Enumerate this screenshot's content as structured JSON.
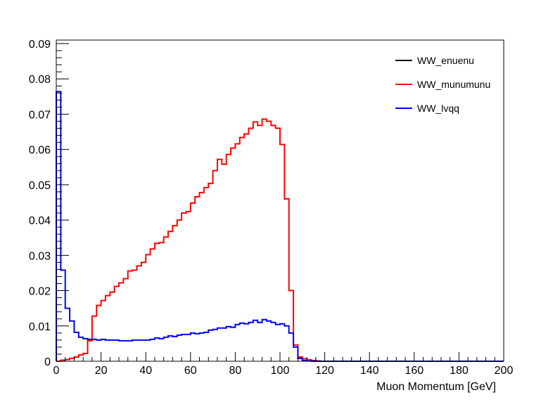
{
  "chart_data": {
    "type": "step-histogram",
    "title": "",
    "xlabel": "Muon Momentum [GeV]",
    "ylabel": "",
    "xlim": [
      0,
      200
    ],
    "ylim": [
      0,
      0.091
    ],
    "bin_width": 2,
    "x_ticks": [
      0,
      20,
      40,
      60,
      80,
      100,
      120,
      140,
      160,
      180,
      200
    ],
    "y_ticks": [
      0,
      0.01,
      0.02,
      0.03,
      0.04,
      0.05,
      0.06,
      0.07,
      0.08,
      0.09
    ],
    "x_tick_labels": [
      "0",
      "20",
      "40",
      "60",
      "80",
      "100",
      "120",
      "140",
      "160",
      "180",
      "200"
    ],
    "y_tick_labels": [
      "0",
      "0.01",
      "0.02",
      "0.03",
      "0.04",
      "0.05",
      "0.06",
      "0.07",
      "0.08",
      "0.09"
    ],
    "grid": false,
    "legend_position": "top-right",
    "series": [
      {
        "name": "WW_enuenu",
        "color": "#000000",
        "values": []
      },
      {
        "name": "WW_munumunu",
        "color": "#ff0000",
        "values": [
          0,
          0.0003,
          0.0005,
          0.0008,
          0.0012,
          0.0018,
          0.0022,
          0.0058,
          0.0128,
          0.0158,
          0.0172,
          0.0186,
          0.0196,
          0.0212,
          0.0222,
          0.0234,
          0.0256,
          0.0258,
          0.027,
          0.028,
          0.0302,
          0.0318,
          0.0334,
          0.0336,
          0.0352,
          0.0368,
          0.0384,
          0.04,
          0.042,
          0.0424,
          0.0448,
          0.0466,
          0.0478,
          0.0492,
          0.0504,
          0.054,
          0.0572,
          0.0558,
          0.0586,
          0.0604,
          0.0616,
          0.0634,
          0.0644,
          0.066,
          0.0678,
          0.0668,
          0.0686,
          0.068,
          0.0668,
          0.066,
          0.0614,
          0.046,
          0.02,
          0.0046,
          0.0012,
          0.0007,
          0.0004,
          0.0002,
          0.0001,
          0,
          0,
          0,
          0,
          0,
          0,
          0,
          0,
          0,
          0,
          0,
          0,
          0,
          0,
          0,
          0,
          0,
          0,
          0,
          0,
          0,
          0,
          0,
          0,
          0,
          0,
          0,
          0,
          0,
          0,
          0,
          0,
          0,
          0,
          0,
          0,
          0,
          0,
          0,
          0,
          0
        ]
      },
      {
        "name": "WW_lvqq",
        "color": "#0000ff",
        "values": [
          0.0764,
          0.0258,
          0.015,
          0.0114,
          0.0082,
          0.0068,
          0.0064,
          0.0062,
          0.0062,
          0.006,
          0.0062,
          0.006,
          0.006,
          0.006,
          0.0058,
          0.0058,
          0.0058,
          0.006,
          0.006,
          0.006,
          0.006,
          0.0062,
          0.0066,
          0.0064,
          0.0068,
          0.0072,
          0.007,
          0.0074,
          0.0076,
          0.0076,
          0.008,
          0.0078,
          0.008,
          0.0082,
          0.0088,
          0.009,
          0.0094,
          0.0094,
          0.0098,
          0.0096,
          0.0104,
          0.0108,
          0.0106,
          0.011,
          0.0116,
          0.011,
          0.0118,
          0.0114,
          0.011,
          0.0104,
          0.0106,
          0.01,
          0.008,
          0.004,
          0.0008,
          0.0002,
          0.0001,
          0,
          0,
          0,
          0,
          0,
          0,
          0,
          0,
          0,
          0,
          0,
          0,
          0,
          0,
          0,
          0,
          0,
          0,
          0,
          0,
          0,
          0,
          0,
          0,
          0,
          0,
          0,
          0,
          0,
          0,
          0,
          0,
          0,
          0,
          0,
          0,
          0,
          0,
          0,
          0,
          0,
          0,
          0
        ]
      }
    ]
  }
}
